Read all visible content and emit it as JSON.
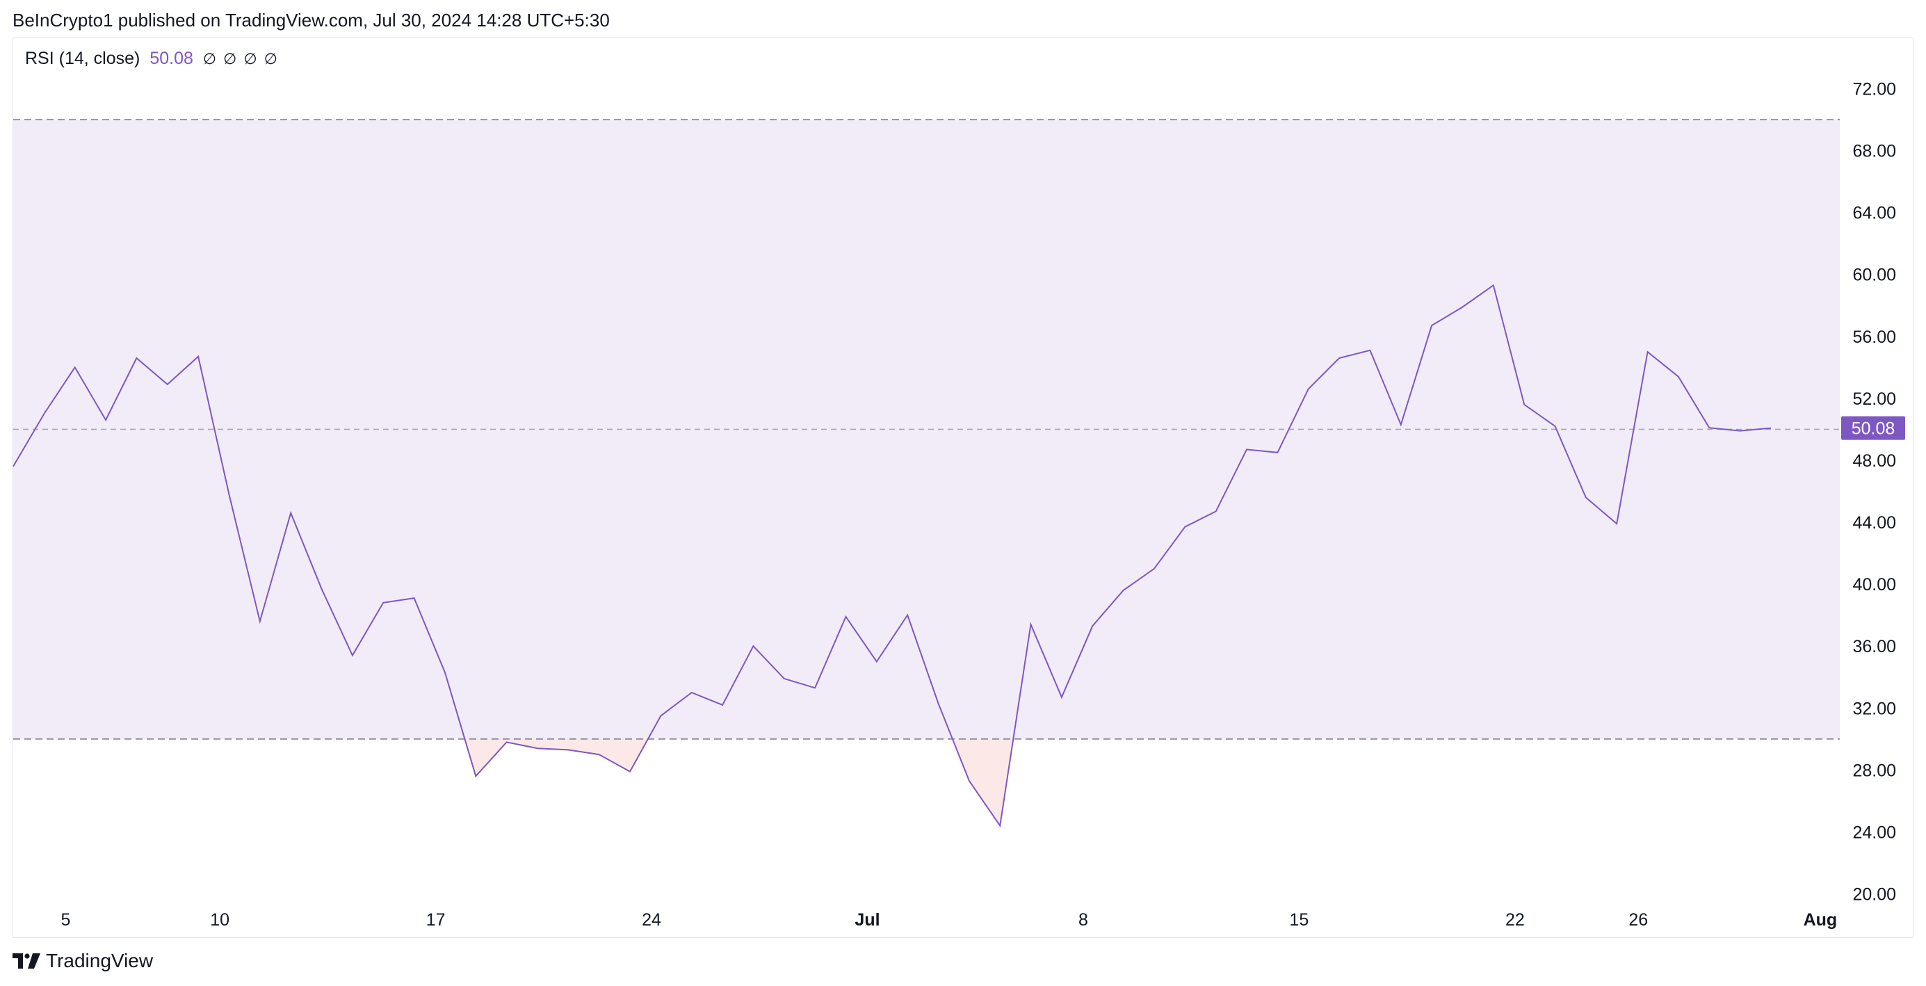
{
  "header": {
    "text": "BeInCrypto1 published on TradingView.com, Jul 30, 2024 14:28 UTC+5:30"
  },
  "legend": {
    "title": "RSI (14, close)",
    "value": "50.08",
    "na_symbols": "∅ ∅ ∅ ∅"
  },
  "footer": {
    "brand": "TradingView",
    "logo_icon": "tradingview-logo-icon"
  },
  "colors": {
    "rsi_line": "#7e57c2",
    "band_fill": "#f1ecf8",
    "oversold_fill": "#fde8e8",
    "band_lines": "#787b86",
    "tag_bg": "#7e57c2"
  },
  "chart_data": {
    "type": "line",
    "title": "RSI (14, close)",
    "xlabel": "",
    "ylabel": "",
    "ylim": [
      20,
      74
    ],
    "y_ticks": [
      "72.00",
      "68.00",
      "64.00",
      "60.00",
      "56.00",
      "52.00",
      "48.00",
      "44.00",
      "40.00",
      "36.00",
      "32.00",
      "28.00",
      "24.00",
      "20.00"
    ],
    "y_tick_values": [
      72,
      68,
      64,
      60,
      56,
      52,
      48,
      44,
      40,
      36,
      32,
      28,
      24,
      20
    ],
    "x_ticks": [
      {
        "label": "5",
        "index": 1.7,
        "bold": false
      },
      {
        "label": "10",
        "index": 6.7,
        "bold": false
      },
      {
        "label": "17",
        "index": 13.7,
        "bold": false
      },
      {
        "label": "24",
        "index": 20.7,
        "bold": false
      },
      {
        "label": "Jul",
        "index": 27.7,
        "bold": true
      },
      {
        "label": "8",
        "index": 34.7,
        "bold": false
      },
      {
        "label": "15",
        "index": 41.7,
        "bold": false
      },
      {
        "label": "22",
        "index": 48.7,
        "bold": false
      },
      {
        "label": "26",
        "index": 52.7,
        "bold": false
      },
      {
        "label": "Aug",
        "index": 58.6,
        "bold": true
      }
    ],
    "x_range": [
      0,
      59
    ],
    "upper_band": 70,
    "middle_band": 50,
    "lower_band": 30,
    "last_value": 50.08,
    "series": [
      {
        "values": [
          47.6,
          51.0,
          54.0,
          50.6,
          54.6,
          52.9,
          54.7,
          45.8,
          37.6,
          44.6,
          39.7,
          35.4,
          38.8,
          39.1,
          34.3,
          27.6,
          29.8,
          29.4,
          29.3,
          29.0,
          27.9,
          31.5,
          33.0,
          32.2,
          36.0,
          33.9,
          33.3,
          37.9,
          35.0,
          38.0,
          32.3,
          27.3,
          24.4,
          37.4,
          32.7,
          37.3,
          39.6,
          41.0,
          43.7,
          44.7,
          48.7,
          48.5,
          52.6,
          54.6,
          55.1,
          50.3,
          56.7,
          57.9,
          59.3,
          51.6,
          50.2,
          45.6,
          43.9,
          55.0,
          53.4,
          50.1,
          49.9,
          50.08
        ]
      }
    ]
  }
}
